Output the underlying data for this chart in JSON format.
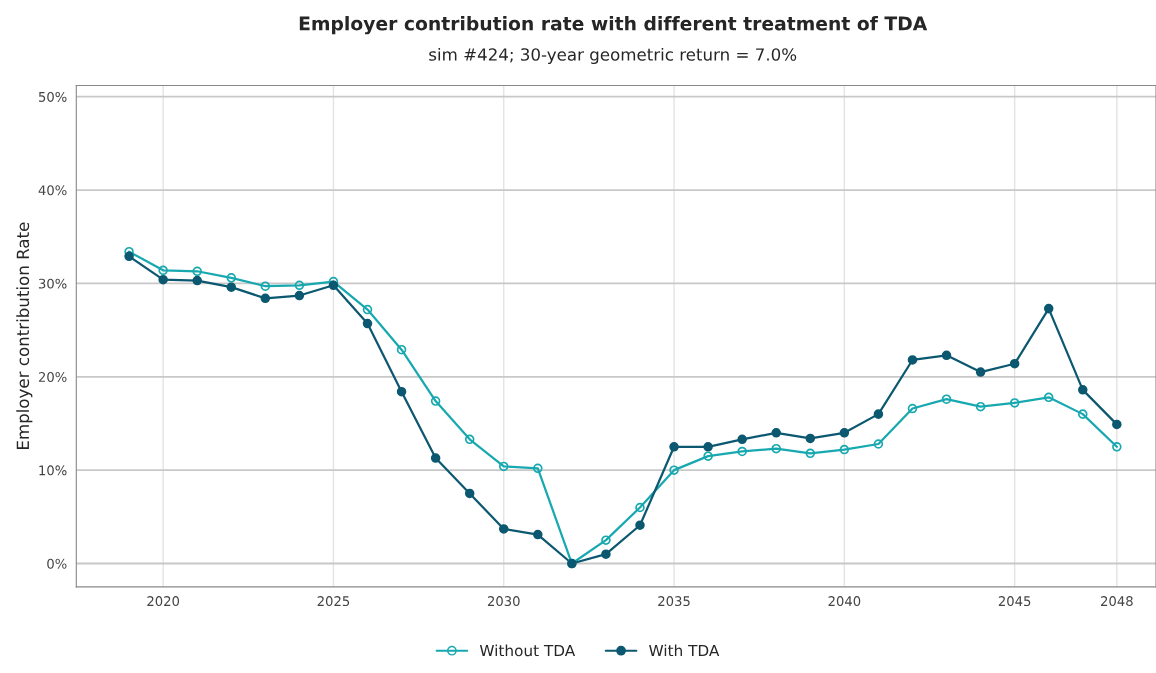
{
  "chart_data": {
    "type": "line",
    "title": "Employer contribution rate with different treatment of TDA",
    "subtitle": "sim #424; 30-year geometric return = 7.0%",
    "ylabel": "Employer contribution Rate",
    "x": [
      2019,
      2020,
      2021,
      2022,
      2023,
      2024,
      2025,
      2026,
      2027,
      2028,
      2029,
      2030,
      2031,
      2032,
      2033,
      2034,
      2035,
      2036,
      2037,
      2038,
      2039,
      2040,
      2041,
      2042,
      2043,
      2044,
      2045,
      2046,
      2047,
      2048
    ],
    "series": [
      {
        "name": "Without TDA",
        "color": "#17a8b0",
        "values": [
          33.4,
          31.4,
          31.3,
          30.6,
          29.7,
          29.8,
          30.2,
          27.2,
          22.9,
          17.4,
          13.3,
          10.4,
          10.2,
          0,
          2.5,
          6.0,
          10.0,
          11.5,
          12.0,
          12.3,
          11.8,
          12.2,
          12.8,
          16.6,
          17.6,
          16.8,
          17.2,
          17.8,
          16.0,
          12.5
        ]
      },
      {
        "name": "With TDA",
        "color": "#0b5870",
        "values": [
          32.9,
          30.4,
          30.3,
          29.6,
          28.4,
          28.7,
          29.8,
          25.7,
          18.4,
          11.3,
          7.5,
          3.7,
          3.1,
          0,
          1.0,
          4.1,
          12.5,
          12.5,
          13.3,
          14.0,
          13.4,
          14.0,
          16.0,
          21.8,
          22.3,
          20.5,
          21.4,
          27.3,
          18.6,
          14.9
        ]
      }
    ],
    "xlim": [
      2017.45,
      2049.15
    ],
    "xticks": [
      2020,
      2025,
      2030,
      2035,
      2040,
      2045,
      2048
    ],
    "ylim": [
      -2.5,
      51.2
    ],
    "yticks": [
      {
        "value": 0,
        "label": "0%"
      },
      {
        "value": 10,
        "label": "10%"
      },
      {
        "value": 20,
        "label": "20%"
      },
      {
        "value": 30,
        "label": "30%"
      },
      {
        "value": 40,
        "label": "40%"
      },
      {
        "value": 50,
        "label": "50%"
      }
    ],
    "grid": true,
    "legend": "bottom",
    "marker": "circle",
    "line_style": "solid"
  }
}
